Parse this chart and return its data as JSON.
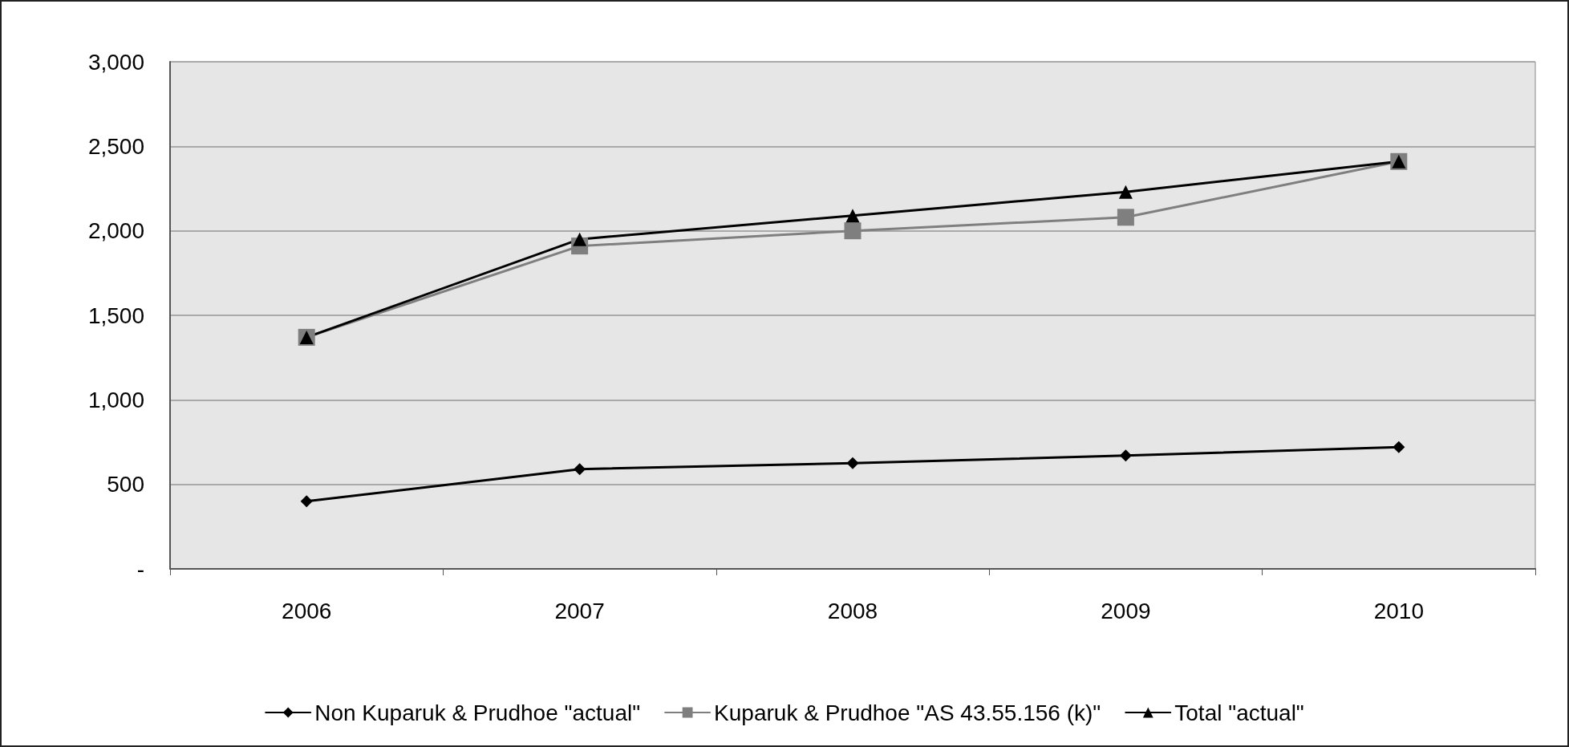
{
  "chart_data": {
    "type": "line",
    "categories": [
      "2006",
      "2007",
      "2008",
      "2009",
      "2010"
    ],
    "series": [
      {
        "name": "Non Kuparuk & Prudhoe \"actual\"",
        "color": "#000000",
        "marker": "diamond",
        "values": [
          400,
          590,
          625,
          670,
          720
        ]
      },
      {
        "name": "Kuparuk & Prudhoe \"AS 43.55.156 (k)\"",
        "color": "#7f7f7f",
        "marker": "square",
        "values": [
          1370,
          1910,
          2000,
          2080,
          2410
        ]
      },
      {
        "name": "Total \"actual\"",
        "color": "#000000",
        "marker": "triangle",
        "values": [
          1370,
          1950,
          2090,
          2230,
          2410
        ]
      }
    ],
    "ylim": [
      0,
      3000
    ],
    "yticks": [
      {
        "value": 0,
        "label": "-"
      },
      500,
      {
        "value": 1000,
        "label": "1,000"
      },
      {
        "value": 1500,
        "label": "1,500"
      },
      {
        "value": 2000,
        "label": "2,000"
      },
      {
        "value": 2500,
        "label": "2,500"
      },
      {
        "value": 3000,
        "label": "3,000"
      }
    ],
    "grid": "y",
    "legend": "bottom",
    "line_style": "solid"
  }
}
